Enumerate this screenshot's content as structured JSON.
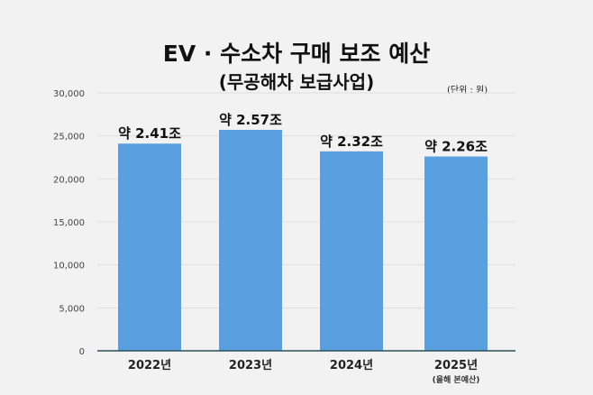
{
  "chart_data": {
    "type": "bar",
    "title": "EV · 수소차 구매 보조 예산",
    "subtitle": "(무공해차 보급사업)",
    "unit_label": "(단위 : 원)",
    "categories": [
      "2022년",
      "2023년",
      "2024년",
      "2025년"
    ],
    "category_notes": [
      "",
      "",
      "",
      "(올해 본예산)"
    ],
    "values": [
      24100,
      25700,
      23200,
      22600
    ],
    "data_labels": [
      "약 2.41조",
      "약 2.57조",
      "약 2.32조",
      "약 2.26조"
    ],
    "ylim": [
      0,
      30000
    ],
    "yticks": [
      0,
      5000,
      10000,
      15000,
      20000,
      25000,
      30000
    ],
    "ytick_labels": [
      "0",
      "5,000",
      "10,000",
      "15,000",
      "20,000",
      "25,000",
      "30,000"
    ],
    "grid": true,
    "colors": {
      "bar": "#5a9fdf",
      "axis": "#2d4f5a",
      "grid": "#dddddd"
    }
  }
}
